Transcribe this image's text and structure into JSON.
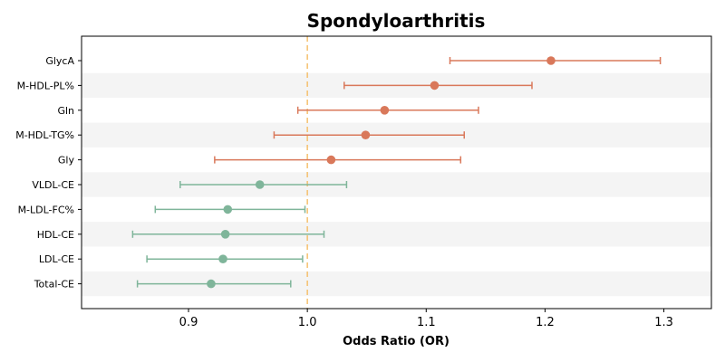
{
  "chart_data": {
    "type": "forest",
    "title": "Spondyloarthritis",
    "xlabel": "Odds Ratio (OR)",
    "ylabel": "",
    "xlim": [
      0.81,
      1.34
    ],
    "xticks": [
      0.9,
      1.0,
      1.1,
      1.2,
      1.3
    ],
    "xtick_labels": [
      "0.9",
      "1.0",
      "1.1",
      "1.2",
      "1.3"
    ],
    "reference_line": 1.0,
    "grid": false,
    "legend": "none",
    "colors": {
      "risk": "#d9785a",
      "protective": "#7fb59a",
      "reference": "#f5c06e",
      "stripe": "#f4f4f4"
    },
    "rows": [
      {
        "label": "GlycA",
        "or": 1.205,
        "lo": 1.12,
        "hi": 1.297,
        "group": "risk"
      },
      {
        "label": "M-HDL-PL%",
        "or": 1.107,
        "lo": 1.031,
        "hi": 1.189,
        "group": "risk"
      },
      {
        "label": "Gln",
        "or": 1.065,
        "lo": 0.992,
        "hi": 1.144,
        "group": "risk"
      },
      {
        "label": "M-HDL-TG%",
        "or": 1.049,
        "lo": 0.972,
        "hi": 1.132,
        "group": "risk"
      },
      {
        "label": "Gly",
        "or": 1.02,
        "lo": 0.922,
        "hi": 1.129,
        "group": "risk"
      },
      {
        "label": "VLDL-CE",
        "or": 0.96,
        "lo": 0.893,
        "hi": 1.033,
        "group": "protective"
      },
      {
        "label": "M-LDL-FC%",
        "or": 0.933,
        "lo": 0.872,
        "hi": 0.998,
        "group": "protective"
      },
      {
        "label": "HDL-CE",
        "or": 0.931,
        "lo": 0.853,
        "hi": 1.014,
        "group": "protective"
      },
      {
        "label": "LDL-CE",
        "or": 0.929,
        "lo": 0.865,
        "hi": 0.996,
        "group": "protective"
      },
      {
        "label": "Total-CE",
        "or": 0.919,
        "lo": 0.857,
        "hi": 0.986,
        "group": "protective"
      }
    ]
  }
}
